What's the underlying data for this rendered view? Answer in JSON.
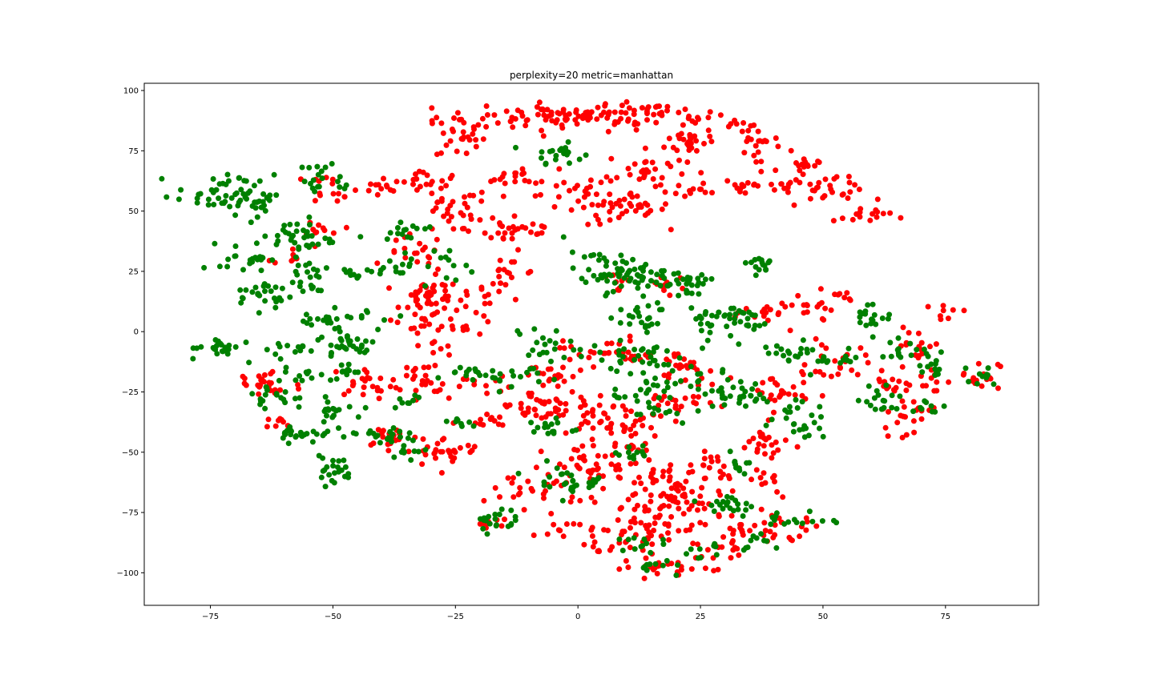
{
  "chart_data": {
    "type": "scatter",
    "title": "perplexity=20 metric=manhattan",
    "xlabel": "",
    "ylabel": "",
    "xlim": [
      -88.5,
      94
    ],
    "ylim": [
      -113.5,
      103
    ],
    "xticks": [
      -75,
      -50,
      -25,
      0,
      25,
      50,
      75
    ],
    "yticks": [
      -100,
      -75,
      -50,
      -25,
      0,
      25,
      50,
      75,
      100
    ],
    "xtick_labels": [
      "−75",
      "−50",
      "−25",
      "0",
      "25",
      "50",
      "75"
    ],
    "ytick_labels": [
      "−100",
      "−75",
      "−50",
      "−25",
      "0",
      "25",
      "50",
      "75",
      "100"
    ],
    "grid": false,
    "legend": "none",
    "colors": {
      "red": "#ff0000",
      "green": "#008000"
    },
    "clusters": [
      {
        "color": "red",
        "x": -3,
        "y": 89,
        "sx": 13,
        "sy": 3,
        "n": 60
      },
      {
        "color": "red",
        "x": 15,
        "y": 89,
        "sx": 8,
        "sy": 2.5,
        "n": 40
      },
      {
        "color": "red",
        "x": -24,
        "y": 81,
        "sx": 2.5,
        "sy": 5,
        "n": 25
      },
      {
        "color": "red",
        "x": -5,
        "y": 90,
        "sx": 6,
        "sy": 2,
        "n": 25
      },
      {
        "color": "red",
        "x": 23,
        "y": 79,
        "sx": 2.5,
        "sy": 3,
        "n": 25
      },
      {
        "color": "green",
        "x": -4,
        "y": 74,
        "sx": 2.5,
        "sy": 2,
        "n": 20
      },
      {
        "color": "red",
        "x": 14,
        "y": 67,
        "sx": 4,
        "sy": 4,
        "n": 30
      },
      {
        "color": "red",
        "x": -12,
        "y": 64,
        "sx": 4,
        "sy": 2,
        "n": 18
      },
      {
        "color": "red",
        "x": -31,
        "y": 63,
        "sx": 3,
        "sy": 2,
        "n": 18
      },
      {
        "color": "red",
        "x": 22,
        "y": 58,
        "sx": 4,
        "sy": 1.5,
        "n": 12
      },
      {
        "color": "red",
        "x": 34,
        "y": 60,
        "sx": 2,
        "sy": 2,
        "n": 10
      },
      {
        "color": "red",
        "x": 1,
        "y": 57,
        "sx": 6,
        "sy": 2.5,
        "n": 30
      },
      {
        "color": "red",
        "x": 10,
        "y": 50,
        "sx": 4,
        "sy": 3,
        "n": 30
      },
      {
        "color": "red",
        "x": -13,
        "y": 43,
        "sx": 5,
        "sy": 4,
        "n": 30
      },
      {
        "color": "red",
        "x": -26,
        "y": 50,
        "sx": 4,
        "sy": 5,
        "n": 30
      },
      {
        "color": "red",
        "x": -33,
        "y": 32,
        "sx": 3,
        "sy": 4,
        "n": 20
      },
      {
        "color": "red",
        "x": -30,
        "y": 14,
        "sx": 3,
        "sy": 4,
        "n": 45
      },
      {
        "color": "red",
        "x": -23,
        "y": 8,
        "sx": 3,
        "sy": 5,
        "n": 20
      },
      {
        "color": "red",
        "x": -14,
        "y": 22,
        "sx": 3,
        "sy": 5,
        "n": 22
      },
      {
        "color": "red",
        "x": -33,
        "y": 3,
        "sx": 4,
        "sy": 1.5,
        "n": 12
      },
      {
        "color": "red",
        "x": -28,
        "y": -6,
        "sx": 2,
        "sy": 2,
        "n": 8
      },
      {
        "color": "red",
        "x": -12,
        "y": -32,
        "sx": 4,
        "sy": 6,
        "n": 22
      },
      {
        "color": "red",
        "x": -43,
        "y": -21,
        "sx": 4,
        "sy": 3,
        "n": 25
      },
      {
        "color": "red",
        "x": -32,
        "y": -23,
        "sx": 3,
        "sy": 5,
        "n": 20
      },
      {
        "color": "red",
        "x": -20,
        "y": -22,
        "sx": 2,
        "sy": 2,
        "n": 8
      },
      {
        "color": "red",
        "x": -64,
        "y": -22,
        "sx": 4,
        "sy": 4,
        "n": 25
      },
      {
        "color": "red",
        "x": -60,
        "y": -38,
        "sx": 2,
        "sy": 1.5,
        "n": 8
      },
      {
        "color": "red",
        "x": -38,
        "y": -43,
        "sx": 3,
        "sy": 2.5,
        "n": 18
      },
      {
        "color": "red",
        "x": -27,
        "y": -50,
        "sx": 4,
        "sy": 3,
        "n": 30
      },
      {
        "color": "red",
        "x": -20,
        "y": -37,
        "sx": 2.5,
        "sy": 1.5,
        "n": 12
      },
      {
        "color": "red",
        "x": -52,
        "y": 43,
        "sx": 2,
        "sy": 1.5,
        "n": 10
      },
      {
        "color": "red",
        "x": -58,
        "y": 33,
        "sx": 2,
        "sy": 3,
        "n": 8
      },
      {
        "color": "red",
        "x": -50,
        "y": 60,
        "sx": 2.5,
        "sy": 3,
        "n": 15
      },
      {
        "color": "red",
        "x": -42,
        "y": 59,
        "sx": 3,
        "sy": 2,
        "n": 10
      },
      {
        "color": "red",
        "x": -5,
        "y": -32,
        "sx": 6,
        "sy": 3,
        "n": 35
      },
      {
        "color": "red",
        "x": 8,
        "y": -40,
        "sx": 4,
        "sy": 5,
        "n": 45
      },
      {
        "color": "red",
        "x": 5,
        "y": -8,
        "sx": 4,
        "sy": 3,
        "n": 25
      },
      {
        "color": "red",
        "x": -5,
        "y": -18,
        "sx": 4,
        "sy": 3,
        "n": 20
      },
      {
        "color": "red",
        "x": 5,
        "y": -57,
        "sx": 6,
        "sy": 5,
        "n": 40
      },
      {
        "color": "red",
        "x": -8,
        "y": -65,
        "sx": 5,
        "sy": 4,
        "n": 30
      },
      {
        "color": "red",
        "x": 18,
        "y": -62,
        "sx": 5,
        "sy": 4,
        "n": 40
      },
      {
        "color": "red",
        "x": 13,
        "y": -82,
        "sx": 6,
        "sy": 5,
        "n": 50
      },
      {
        "color": "red",
        "x": 22,
        "y": -72,
        "sx": 6,
        "sy": 3,
        "n": 35
      },
      {
        "color": "red",
        "x": 30,
        "y": -58,
        "sx": 3,
        "sy": 4,
        "n": 20
      },
      {
        "color": "red",
        "x": 33,
        "y": -83,
        "sx": 4,
        "sy": 3,
        "n": 25
      },
      {
        "color": "red",
        "x": 42,
        "y": -82,
        "sx": 4,
        "sy": 3,
        "n": 15
      },
      {
        "color": "red",
        "x": 40,
        "y": -62,
        "sx": 2,
        "sy": 4,
        "n": 12
      },
      {
        "color": "red",
        "x": 18,
        "y": -98,
        "sx": 4,
        "sy": 2,
        "n": 20
      },
      {
        "color": "red",
        "x": 5,
        "y": -90,
        "sx": 3,
        "sy": 2,
        "n": 12
      },
      {
        "color": "red",
        "x": 28,
        "y": -92,
        "sx": 3,
        "sy": 3,
        "n": 12
      },
      {
        "color": "red",
        "x": -3,
        "y": -82,
        "sx": 3,
        "sy": 2,
        "n": 10
      },
      {
        "color": "red",
        "x": -18,
        "y": -80,
        "sx": 2,
        "sy": 2,
        "n": 8
      },
      {
        "color": "red",
        "x": 23,
        "y": -17,
        "sx": 3,
        "sy": 3,
        "n": 20
      },
      {
        "color": "red",
        "x": 20,
        "y": -30,
        "sx": 4,
        "sy": 3,
        "n": 22
      },
      {
        "color": "red",
        "x": 15,
        "y": -10,
        "sx": 4,
        "sy": 2,
        "n": 12
      },
      {
        "color": "red",
        "x": 18,
        "y": 20,
        "sx": 2,
        "sy": 2,
        "n": 10
      },
      {
        "color": "red",
        "x": 8,
        "y": 18,
        "sx": 2,
        "sy": 2,
        "n": 8
      },
      {
        "color": "red",
        "x": 40,
        "y": 8,
        "sx": 3,
        "sy": 3,
        "n": 15
      },
      {
        "color": "red",
        "x": 47,
        "y": 9,
        "sx": 3,
        "sy": 3,
        "n": 15
      },
      {
        "color": "red",
        "x": 54,
        "y": 13,
        "sx": 2,
        "sy": 3,
        "n": 8
      },
      {
        "color": "red",
        "x": 41,
        "y": -25,
        "sx": 3,
        "sy": 4,
        "n": 25
      },
      {
        "color": "red",
        "x": 38,
        "y": -47,
        "sx": 3,
        "sy": 4,
        "n": 22
      },
      {
        "color": "red",
        "x": 53,
        "y": -13,
        "sx": 3,
        "sy": 4,
        "n": 22
      },
      {
        "color": "red",
        "x": 66,
        "y": -35,
        "sx": 3,
        "sy": 4,
        "n": 22
      },
      {
        "color": "red",
        "x": 70,
        "y": -5,
        "sx": 3,
        "sy": 4,
        "n": 15
      },
      {
        "color": "red",
        "x": 71,
        "y": -20,
        "sx": 3,
        "sy": 3,
        "n": 15
      },
      {
        "color": "red",
        "x": 75,
        "y": 8,
        "sx": 2,
        "sy": 2,
        "n": 8
      },
      {
        "color": "red",
        "x": 82,
        "y": -18,
        "sx": 2,
        "sy": 3,
        "n": 15
      },
      {
        "color": "red",
        "x": 64,
        "y": -20,
        "sx": 2,
        "sy": 3,
        "n": 10
      },
      {
        "color": "red",
        "x": 37,
        "y": 78,
        "sx": 3,
        "sy": 5,
        "n": 20
      },
      {
        "color": "red",
        "x": 32,
        "y": 84,
        "sx": 2,
        "sy": 2,
        "n": 8
      },
      {
        "color": "red",
        "x": 45,
        "y": 67,
        "sx": 2,
        "sy": 3,
        "n": 15
      },
      {
        "color": "red",
        "x": 40,
        "y": 61,
        "sx": 4,
        "sy": 1.5,
        "n": 12
      },
      {
        "color": "red",
        "x": 50,
        "y": 58,
        "sx": 4,
        "sy": 3,
        "n": 25
      },
      {
        "color": "red",
        "x": 58,
        "y": 48,
        "sx": 3,
        "sy": 2,
        "n": 15
      },
      {
        "color": "green",
        "x": -72,
        "y": 57,
        "sx": 5,
        "sy": 4,
        "n": 45
      },
      {
        "color": "green",
        "x": -65,
        "y": 54,
        "sx": 3,
        "sy": 4,
        "n": 20
      },
      {
        "color": "green",
        "x": -68,
        "y": 31,
        "sx": 2.5,
        "sy": 3,
        "n": 22
      },
      {
        "color": "green",
        "x": -64,
        "y": 15,
        "sx": 3,
        "sy": 3,
        "n": 25
      },
      {
        "color": "green",
        "x": -56,
        "y": 38,
        "sx": 3,
        "sy": 3,
        "n": 25
      },
      {
        "color": "green",
        "x": -55,
        "y": 22,
        "sx": 2,
        "sy": 5,
        "n": 20
      },
      {
        "color": "green",
        "x": -53,
        "y": 5,
        "sx": 3,
        "sy": 2,
        "n": 15
      },
      {
        "color": "green",
        "x": -47,
        "y": -5,
        "sx": 3,
        "sy": 3,
        "n": 30
      },
      {
        "color": "green",
        "x": -42,
        "y": 6,
        "sx": 4,
        "sy": 2,
        "n": 12
      },
      {
        "color": "green",
        "x": -72,
        "y": -7,
        "sx": 4,
        "sy": 2,
        "n": 25
      },
      {
        "color": "green",
        "x": -58,
        "y": -7,
        "sx": 2,
        "sy": 1.5,
        "n": 10
      },
      {
        "color": "green",
        "x": -57,
        "y": -17,
        "sx": 3,
        "sy": 2,
        "n": 12
      },
      {
        "color": "green",
        "x": -47,
        "y": -17,
        "sx": 2,
        "sy": 2,
        "n": 12
      },
      {
        "color": "green",
        "x": -62,
        "y": -27,
        "sx": 3,
        "sy": 3,
        "n": 18
      },
      {
        "color": "green",
        "x": -56,
        "y": -42,
        "sx": 3,
        "sy": 2,
        "n": 25
      },
      {
        "color": "green",
        "x": -50,
        "y": -32,
        "sx": 3,
        "sy": 2,
        "n": 18
      },
      {
        "color": "green",
        "x": -50,
        "y": -58,
        "sx": 2,
        "sy": 3,
        "n": 22
      },
      {
        "color": "green",
        "x": -40,
        "y": -43,
        "sx": 4,
        "sy": 2,
        "n": 20
      },
      {
        "color": "green",
        "x": -35,
        "y": -50,
        "sx": 3,
        "sy": 2,
        "n": 10
      },
      {
        "color": "green",
        "x": -39,
        "y": 27,
        "sx": 4,
        "sy": 2,
        "n": 15
      },
      {
        "color": "green",
        "x": -45,
        "y": 25,
        "sx": 3,
        "sy": 2,
        "n": 8
      },
      {
        "color": "green",
        "x": -36,
        "y": 42,
        "sx": 3,
        "sy": 2,
        "n": 15
      },
      {
        "color": "green",
        "x": -28,
        "y": 28,
        "sx": 3,
        "sy": 3,
        "n": 12
      },
      {
        "color": "green",
        "x": -51,
        "y": 63,
        "sx": 3,
        "sy": 4,
        "n": 20
      },
      {
        "color": "green",
        "x": -58,
        "y": 42,
        "sx": 2,
        "sy": 2,
        "n": 10
      },
      {
        "color": "green",
        "x": -21,
        "y": -17,
        "sx": 4,
        "sy": 2,
        "n": 18
      },
      {
        "color": "green",
        "x": -10,
        "y": -20,
        "sx": 3,
        "sy": 3,
        "n": 12
      },
      {
        "color": "green",
        "x": -6,
        "y": -40,
        "sx": 3,
        "sy": 2,
        "n": 15
      },
      {
        "color": "green",
        "x": -7,
        "y": -5,
        "sx": 3,
        "sy": 4,
        "n": 20
      },
      {
        "color": "green",
        "x": 5,
        "y": 25,
        "sx": 4,
        "sy": 4,
        "n": 40
      },
      {
        "color": "green",
        "x": 13,
        "y": 23,
        "sx": 3,
        "sy": 3,
        "n": 25
      },
      {
        "color": "green",
        "x": 22,
        "y": 20,
        "sx": 3,
        "sy": 4,
        "n": 30
      },
      {
        "color": "green",
        "x": 26,
        "y": 5,
        "sx": 3,
        "sy": 4,
        "n": 25
      },
      {
        "color": "green",
        "x": 33,
        "y": 5,
        "sx": 3,
        "sy": 3,
        "n": 20
      },
      {
        "color": "green",
        "x": 37,
        "y": 28,
        "sx": 2,
        "sy": 2,
        "n": 15
      },
      {
        "color": "green",
        "x": 12,
        "y": -10,
        "sx": 5,
        "sy": 3,
        "n": 30
      },
      {
        "color": "green",
        "x": 12,
        "y": 7,
        "sx": 3,
        "sy": 4,
        "n": 25
      },
      {
        "color": "green",
        "x": 15,
        "y": -28,
        "sx": 4,
        "sy": 6,
        "n": 40
      },
      {
        "color": "green",
        "x": 11,
        "y": -50,
        "sx": 2,
        "sy": 3,
        "n": 12
      },
      {
        "color": "green",
        "x": 29,
        "y": -22,
        "sx": 3,
        "sy": 4,
        "n": 25
      },
      {
        "color": "green",
        "x": 34,
        "y": -27,
        "sx": 3,
        "sy": 3,
        "n": 15
      },
      {
        "color": "green",
        "x": 45,
        "y": -37,
        "sx": 3,
        "sy": 4,
        "n": 25
      },
      {
        "color": "green",
        "x": 44,
        "y": -8,
        "sx": 3,
        "sy": 2,
        "n": 18
      },
      {
        "color": "green",
        "x": 52,
        "y": -12,
        "sx": 3,
        "sy": 3,
        "n": 15
      },
      {
        "color": "green",
        "x": 60,
        "y": 7,
        "sx": 2,
        "sy": 3,
        "n": 18
      },
      {
        "color": "green",
        "x": 63,
        "y": -28,
        "sx": 3,
        "sy": 3,
        "n": 18
      },
      {
        "color": "green",
        "x": 67,
        "y": -7,
        "sx": 3,
        "sy": 2,
        "n": 12
      },
      {
        "color": "green",
        "x": 72,
        "y": -14,
        "sx": 2,
        "sy": 3,
        "n": 15
      },
      {
        "color": "green",
        "x": 72,
        "y": -32,
        "sx": 2,
        "sy": 2,
        "n": 8
      },
      {
        "color": "green",
        "x": 82,
        "y": -19,
        "sx": 2,
        "sy": 3,
        "n": 10
      },
      {
        "color": "green",
        "x": -17,
        "y": -78,
        "sx": 2,
        "sy": 3,
        "n": 20
      },
      {
        "color": "green",
        "x": -5,
        "y": -61,
        "sx": 3,
        "sy": 3,
        "n": 18
      },
      {
        "color": "green",
        "x": 3,
        "y": -62,
        "sx": 3,
        "sy": 2,
        "n": 12
      },
      {
        "color": "green",
        "x": 10,
        "y": -88,
        "sx": 3,
        "sy": 2,
        "n": 12
      },
      {
        "color": "green",
        "x": 17,
        "y": -98,
        "sx": 3,
        "sy": 2,
        "n": 10
      },
      {
        "color": "green",
        "x": 25,
        "y": -90,
        "sx": 2,
        "sy": 2,
        "n": 10
      },
      {
        "color": "green",
        "x": 31,
        "y": -72,
        "sx": 3,
        "sy": 3,
        "n": 20
      },
      {
        "color": "green",
        "x": 32,
        "y": -55,
        "sx": 2,
        "sy": 3,
        "n": 10
      },
      {
        "color": "green",
        "x": 45,
        "y": -78,
        "sx": 3,
        "sy": 2,
        "n": 15
      },
      {
        "color": "green",
        "x": 38,
        "y": -88,
        "sx": 3,
        "sy": 2,
        "n": 10
      },
      {
        "color": "green",
        "x": -24,
        "y": -38,
        "sx": 2,
        "sy": 2,
        "n": 8
      },
      {
        "color": "green",
        "x": -35,
        "y": -28,
        "sx": 2,
        "sy": 1.5,
        "n": 8
      }
    ]
  }
}
